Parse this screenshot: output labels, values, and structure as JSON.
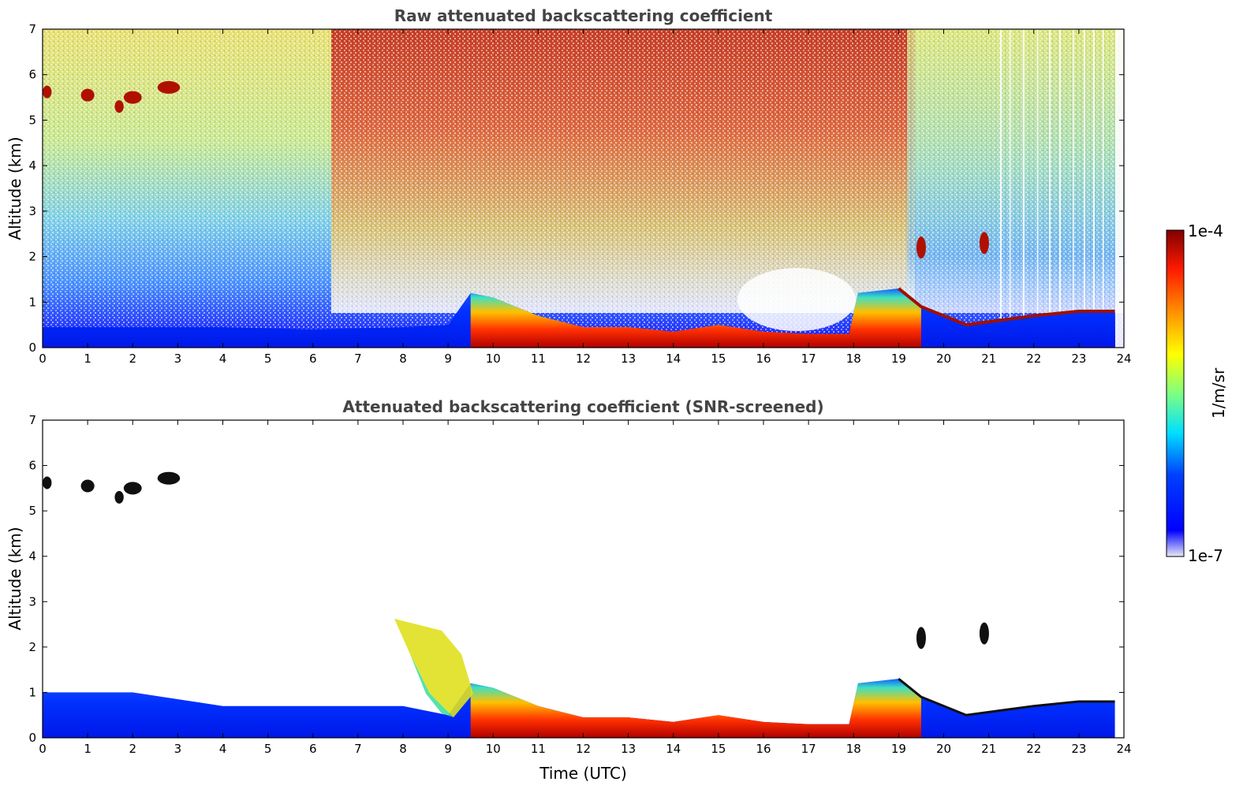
{
  "chart_data": [
    {
      "type": "heatmap",
      "title": "Raw attenuated backscattering coefficient",
      "xlabel": "",
      "ylabel": "Altitude (km)",
      "xlim": [
        0,
        24
      ],
      "ylim": [
        0,
        7
      ],
      "xticks": [
        "0",
        "1",
        "2",
        "3",
        "4",
        "5",
        "6",
        "7",
        "8",
        "9",
        "10",
        "11",
        "12",
        "13",
        "14",
        "15",
        "16",
        "17",
        "18",
        "19",
        "20",
        "21",
        "22",
        "23",
        "24"
      ],
      "yticks": [
        "0",
        "1",
        "2",
        "3",
        "4",
        "5",
        "6",
        "7"
      ],
      "screened": false,
      "features": {
        "boundary_layer_top_km": [
          [
            0,
            0.45
          ],
          [
            2,
            0.45
          ],
          [
            4,
            0.45
          ],
          [
            6,
            0.4
          ],
          [
            8,
            0.45
          ],
          [
            9,
            0.5
          ],
          [
            9.5,
            1.2
          ],
          [
            10,
            1.1
          ],
          [
            11,
            0.7
          ],
          [
            12,
            0.45
          ],
          [
            13,
            0.45
          ],
          [
            14,
            0.35
          ],
          [
            15,
            0.5
          ],
          [
            16,
            0.35
          ],
          [
            17,
            0.3
          ],
          [
            17.9,
            0.3
          ],
          [
            18.1,
            1.2
          ],
          [
            19,
            1.3
          ],
          [
            19.5,
            0.9
          ],
          [
            20.5,
            0.5
          ],
          [
            22,
            0.7
          ],
          [
            23,
            0.8
          ],
          [
            23.8,
            0.8
          ]
        ],
        "elevated_cloud": [
          {
            "t_start": 0.0,
            "t_end": 3.0,
            "altitude_km": 5.5
          }
        ],
        "small_cloud": [
          {
            "t": 19.5,
            "altitude_km": 2.2
          },
          {
            "t": 20.9,
            "altitude_km": 2.3
          }
        ]
      }
    },
    {
      "type": "heatmap",
      "title": "Attenuated backscattering coefficient (SNR-screened)",
      "xlabel": "Time (UTC)",
      "ylabel": "Altitude (km)",
      "xlim": [
        0,
        24
      ],
      "ylim": [
        0,
        7
      ],
      "xticks": [
        "0",
        "1",
        "2",
        "3",
        "4",
        "5",
        "6",
        "7",
        "8",
        "9",
        "10",
        "11",
        "12",
        "13",
        "14",
        "15",
        "16",
        "17",
        "18",
        "19",
        "20",
        "21",
        "22",
        "23",
        "24"
      ],
      "yticks": [
        "0",
        "1",
        "2",
        "3",
        "4",
        "5",
        "6",
        "7"
      ],
      "screened": true
    }
  ],
  "colorbar": {
    "label": "1/m/sr",
    "max_label": "1e-4",
    "min_label": "1e-7",
    "scale": "log",
    "range": [
      1e-07,
      0.0001
    ],
    "colormap": "jet"
  },
  "colors": {
    "background": "#ffffff",
    "title_text": "#444444",
    "axis": "#000000"
  }
}
